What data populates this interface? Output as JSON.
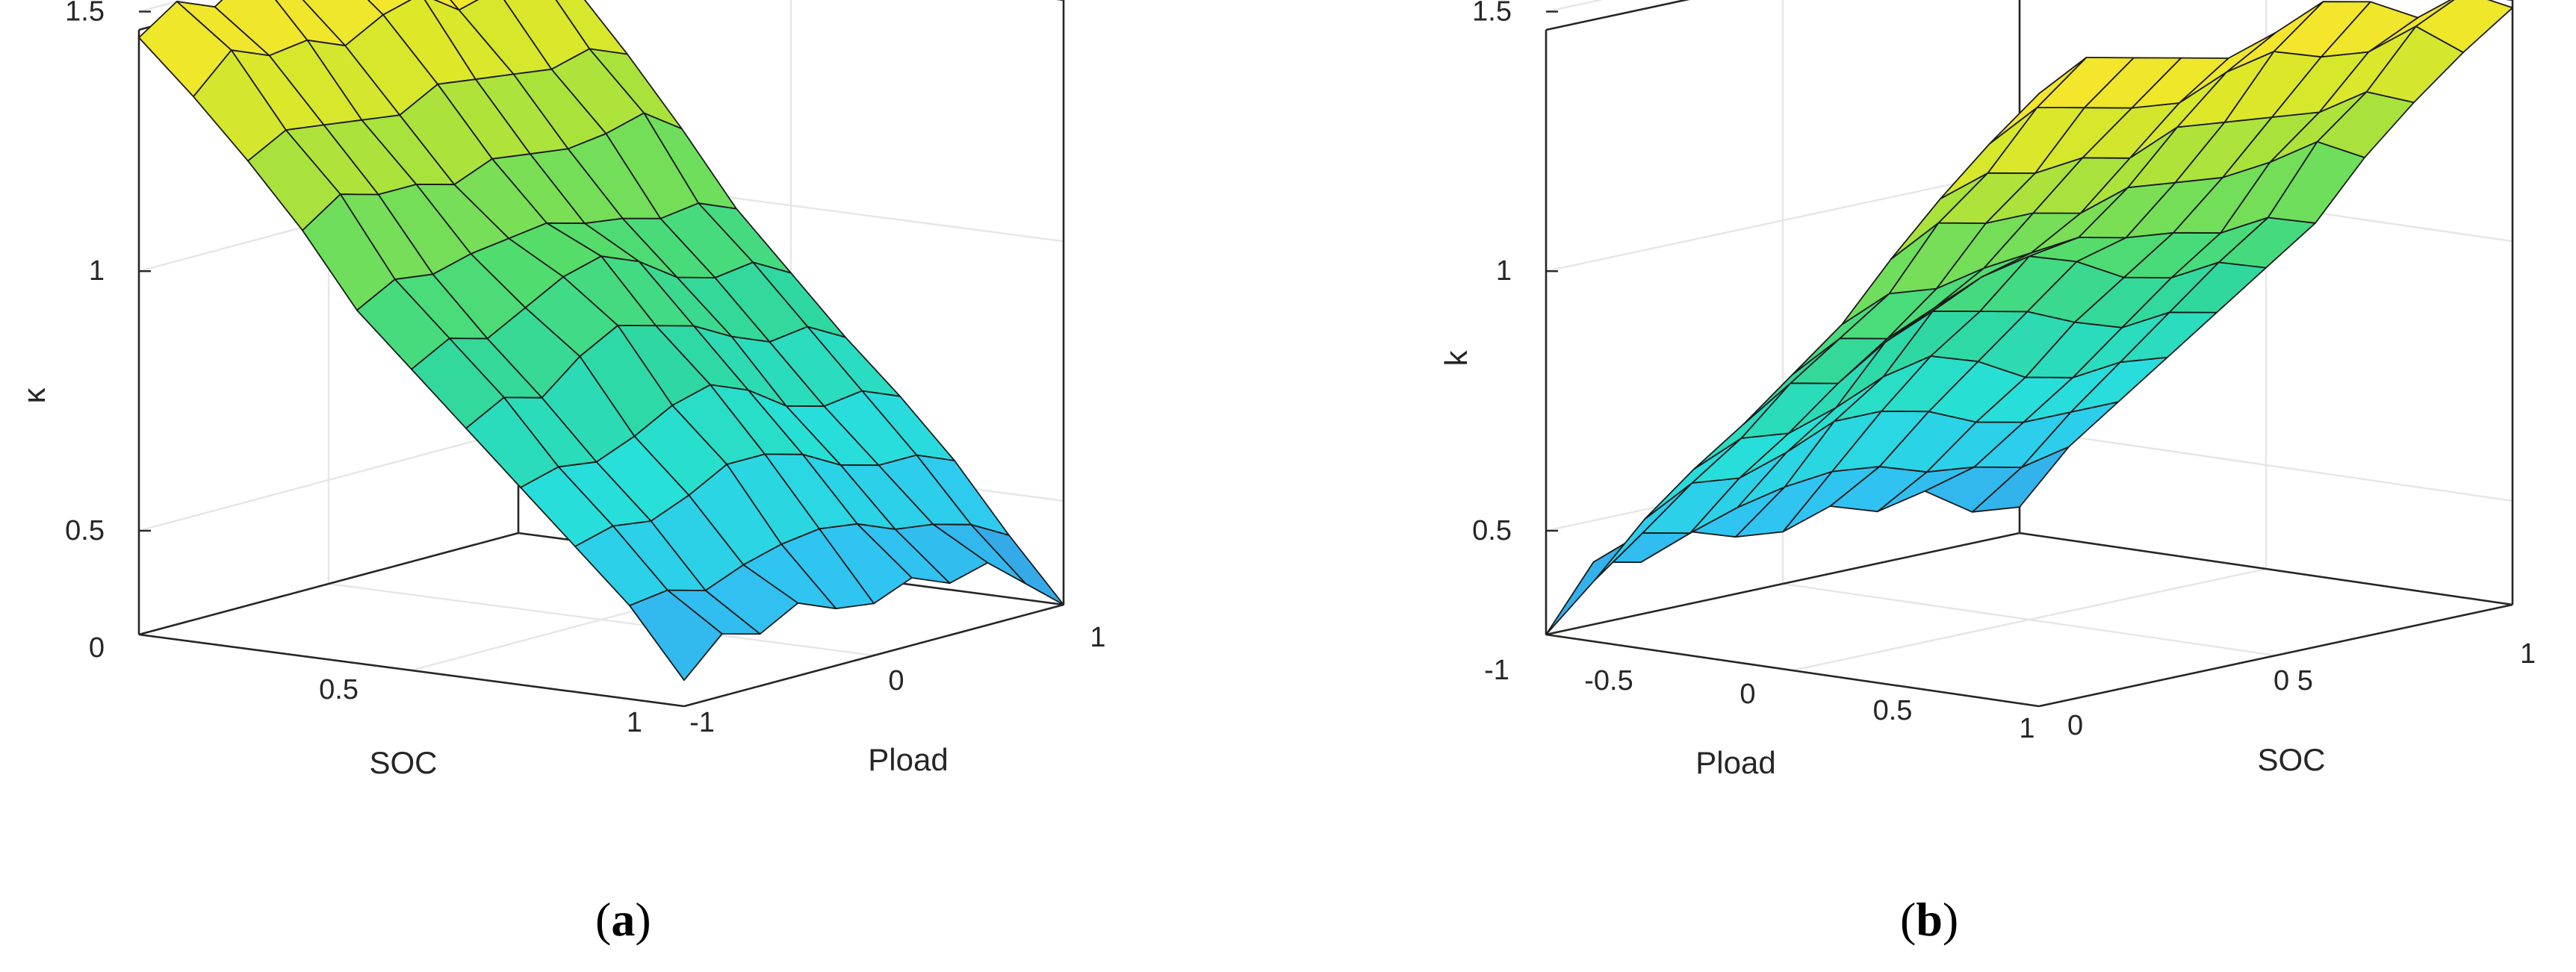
{
  "chart_data": [
    {
      "type": "surface",
      "caption_letter": "a",
      "xlabel": "SOC",
      "ylabel": "Pload",
      "zlabel": "κ",
      "xlim": [
        0,
        1
      ],
      "ylim": [
        -1,
        1
      ],
      "zlim": [
        0.3,
        1.6
      ],
      "x_ticks": [
        "0",
        "0.5",
        "1"
      ],
      "y_ticks": [
        "-1",
        "0",
        "1"
      ],
      "z_ticks": [
        "0.5",
        "1",
        "1.5"
      ],
      "grid": true,
      "colormap": [
        "#3a8fe0",
        "#2fc8f2",
        "#27e0d8",
        "#2fd8a0",
        "#55dc6a",
        "#a6e23e",
        "#e6e826",
        "#ffe433"
      ],
      "surface": {
        "soc": [
          0,
          0.1,
          0.2,
          0.3,
          0.4,
          0.5,
          0.6,
          0.7,
          0.8,
          0.9,
          1.0
        ],
        "pload": [
          -1,
          -0.8,
          -0.6,
          -0.4,
          -0.2,
          0,
          0.2,
          0.4,
          0.6,
          0.8,
          1
        ],
        "k": [
          [
            1.45,
            1.5,
            1.47,
            1.52,
            1.47,
            1.5,
            1.54,
            1.49,
            1.51,
            1.53,
            1.48
          ],
          [
            1.35,
            1.42,
            1.39,
            1.4,
            1.37,
            1.41,
            1.43,
            1.38,
            1.4,
            1.42,
            1.37
          ],
          [
            1.24,
            1.28,
            1.27,
            1.26,
            1.25,
            1.29,
            1.28,
            1.27,
            1.26,
            1.28,
            1.25
          ],
          [
            1.12,
            1.17,
            1.15,
            1.15,
            1.13,
            1.16,
            1.15,
            1.14,
            1.15,
            1.17,
            1.12
          ],
          [
            0.98,
            1.02,
            1.01,
            1.03,
            1.04,
            1.05,
            1.03,
            1.02,
            1.0,
            1.01,
            0.98
          ],
          [
            0.88,
            0.92,
            0.9,
            0.94,
            0.98,
            1.0,
            0.97,
            0.92,
            0.9,
            0.91,
            0.87
          ],
          [
            0.78,
            0.82,
            0.8,
            0.86,
            0.9,
            0.88,
            0.86,
            0.82,
            0.79,
            0.8,
            0.76
          ],
          [
            0.68,
            0.7,
            0.69,
            0.72,
            0.76,
            0.78,
            0.75,
            0.7,
            0.68,
            0.69,
            0.66
          ],
          [
            0.58,
            0.6,
            0.59,
            0.62,
            0.66,
            0.66,
            0.64,
            0.6,
            0.58,
            0.58,
            0.55
          ],
          [
            0.48,
            0.49,
            0.47,
            0.5,
            0.52,
            0.53,
            0.52,
            0.49,
            0.48,
            0.46,
            0.42
          ],
          [
            0.35,
            0.42,
            0.4,
            0.44,
            0.41,
            0.4,
            0.43,
            0.4,
            0.42,
            0.36,
            0.3
          ]
        ]
      }
    },
    {
      "type": "surface",
      "caption_letter": "b",
      "xlabel": "Pload",
      "ylabel": "SOC",
      "zlabel": "k",
      "xlim": [
        -1,
        1
      ],
      "ylim": [
        0,
        1
      ],
      "zlim": [
        0.3,
        1.6
      ],
      "x_ticks": [
        "-1",
        "-0.5",
        "0",
        "0.5",
        "1"
      ],
      "y_ticks": [
        "0",
        "0.5",
        "1"
      ],
      "y_tick_text": [
        "0",
        "0 5",
        "1"
      ],
      "z_ticks": [
        "0.5",
        "1",
        "1.5"
      ],
      "grid": true,
      "colormap": [
        "#3a8fe0",
        "#2fc8f2",
        "#27e0d8",
        "#2fd8a0",
        "#55dc6a",
        "#a6e23e",
        "#e6e826",
        "#ffe433"
      ],
      "surface": {
        "pload": [
          -1,
          -0.8,
          -0.6,
          -0.4,
          -0.2,
          0,
          0.2,
          0.4,
          0.6,
          0.8,
          1
        ],
        "soc": [
          1.0,
          0.9,
          0.8,
          0.7,
          0.6,
          0.5,
          0.4,
          0.3,
          0.2,
          0.1,
          0
        ],
        "k": [
          [
            0.3,
            0.42,
            0.4,
            0.44,
            0.41,
            0.4,
            0.43,
            0.4,
            0.42,
            0.36,
            0.35
          ],
          [
            0.42,
            0.49,
            0.47,
            0.5,
            0.52,
            0.53,
            0.52,
            0.49,
            0.48,
            0.46,
            0.48
          ],
          [
            0.55,
            0.6,
            0.59,
            0.62,
            0.66,
            0.66,
            0.64,
            0.6,
            0.58,
            0.58,
            0.58
          ],
          [
            0.66,
            0.7,
            0.69,
            0.72,
            0.76,
            0.78,
            0.75,
            0.7,
            0.68,
            0.69,
            0.68
          ],
          [
            0.76,
            0.82,
            0.8,
            0.86,
            0.9,
            0.88,
            0.86,
            0.82,
            0.79,
            0.8,
            0.78
          ],
          [
            0.87,
            0.92,
            0.9,
            0.94,
            0.98,
            1.0,
            0.97,
            0.92,
            0.9,
            0.91,
            0.88
          ],
          [
            0.98,
            1.02,
            1.01,
            1.03,
            1.04,
            1.05,
            1.03,
            1.02,
            1.0,
            1.01,
            0.98
          ],
          [
            1.12,
            1.17,
            1.15,
            1.15,
            1.13,
            1.16,
            1.15,
            1.14,
            1.15,
            1.17,
            1.12
          ],
          [
            1.25,
            1.28,
            1.26,
            1.27,
            1.25,
            1.29,
            1.28,
            1.27,
            1.26,
            1.28,
            1.24
          ],
          [
            1.37,
            1.42,
            1.4,
            1.38,
            1.37,
            1.41,
            1.43,
            1.4,
            1.39,
            1.42,
            1.35
          ],
          [
            1.48,
            1.53,
            1.51,
            1.49,
            1.47,
            1.5,
            1.54,
            1.52,
            1.47,
            1.5,
            1.45
          ]
        ]
      }
    }
  ]
}
